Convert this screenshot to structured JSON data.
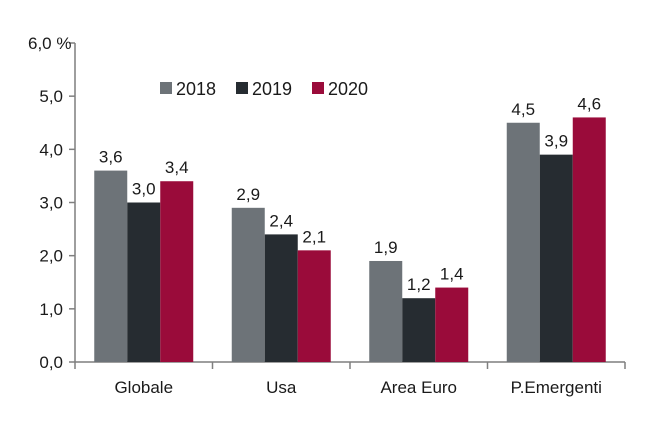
{
  "chart_data": {
    "type": "bar",
    "categories": [
      "Globale",
      "Usa",
      "Area Euro",
      "P.Emergenti"
    ],
    "series": [
      {
        "name": "2018",
        "values": [
          3.6,
          2.9,
          1.9,
          4.5
        ],
        "labels": [
          "3,6",
          "2,9",
          "1,9",
          "4,5"
        ],
        "color": "#6d7378"
      },
      {
        "name": "2019",
        "values": [
          3.0,
          2.4,
          1.2,
          3.9
        ],
        "labels": [
          "3,0",
          "2,4",
          "1,2",
          "3,9"
        ],
        "color": "#262c31"
      },
      {
        "name": "2020",
        "values": [
          3.4,
          2.1,
          1.4,
          4.6
        ],
        "labels": [
          "3,4",
          "2,1",
          "1,4",
          "4,6"
        ],
        "color": "#9a0b3a"
      }
    ],
    "y_ticks": [
      {
        "value": 0,
        "label": "0,0"
      },
      {
        "value": 1,
        "label": "1,0"
      },
      {
        "value": 2,
        "label": "2,0"
      },
      {
        "value": 3,
        "label": "3,0"
      },
      {
        "value": 4,
        "label": "4,0"
      },
      {
        "value": 5,
        "label": "5,0"
      },
      {
        "value": 6,
        "label": "6,0 %"
      }
    ],
    "ylim": [
      0,
      6
    ],
    "title": "",
    "xlabel": "",
    "ylabel": "",
    "grid": false,
    "legend_position": "top-left"
  }
}
